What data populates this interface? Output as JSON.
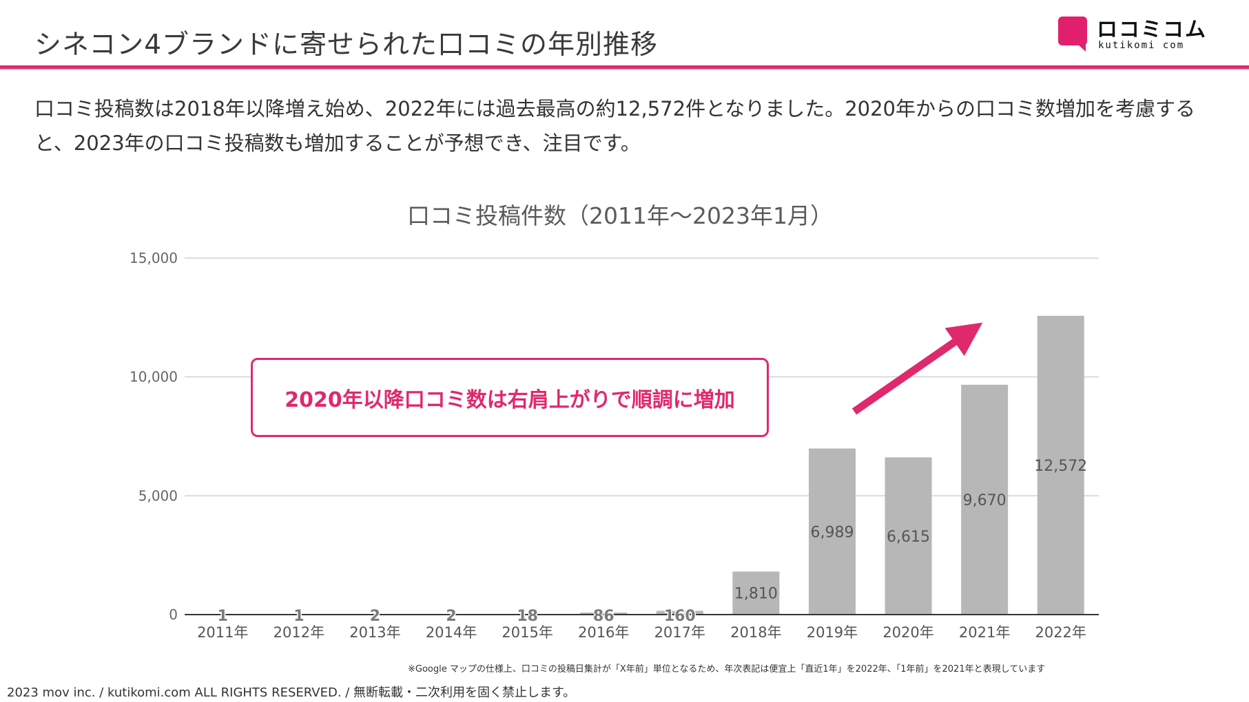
{
  "header": {
    "title": "シネコン4ブランドに寄せられた口コミの年別推移",
    "accent_color": "#e0286d"
  },
  "logo": {
    "name_jp": "ロコミコム",
    "name_en": "kutikomi com",
    "icon": "speech-bubble-icon"
  },
  "lead_text": "口コミ投稿数は2018年以降増え始め、2022年には過去最高の約12,572件となりました。2020年からの口コミ数増加を考慮すると、2023年の口コミ投稿数も増加することが予想でき、注目です。",
  "callout": {
    "text": "2020年以降口コミ数は右肩上がりで順調に増加"
  },
  "chart_data": {
    "type": "bar",
    "title": "口コミ投稿件数（2011年～2023年1月）",
    "xlabel": "",
    "ylabel": "",
    "categories": [
      "2011年",
      "2012年",
      "2013年",
      "2014年",
      "2015年",
      "2016年",
      "2017年",
      "2018年",
      "2019年",
      "2020年",
      "2021年",
      "2022年"
    ],
    "values": [
      1,
      1,
      2,
      2,
      18,
      86,
      160,
      1810,
      6989,
      6615,
      9670,
      12572
    ],
    "data_labels": [
      "1",
      "1",
      "2",
      "2",
      "18",
      "86",
      "160",
      "1,810",
      "6,989",
      "6,615",
      "9,670",
      "12,572"
    ],
    "ylim": [
      0,
      15000
    ],
    "yticks": [
      0,
      5000,
      10000,
      15000
    ],
    "ytick_labels": [
      "0",
      "5,000",
      "10,000",
      "15,000"
    ],
    "grid": true,
    "bar_color": "#b7b7b7",
    "annotation": "upward trend arrow"
  },
  "footnote": "※Google マップの仕様上、口コミの投稿日集計が「X年前」単位となるため、年次表記は便宜上「直近1年」を2022年、「1年前」を2021年と表現しています",
  "copyright": "2023 mov inc. / kutikomi.com ALL RIGHTS RESERVED. / 無断転載・二次利用を固く禁止します。"
}
